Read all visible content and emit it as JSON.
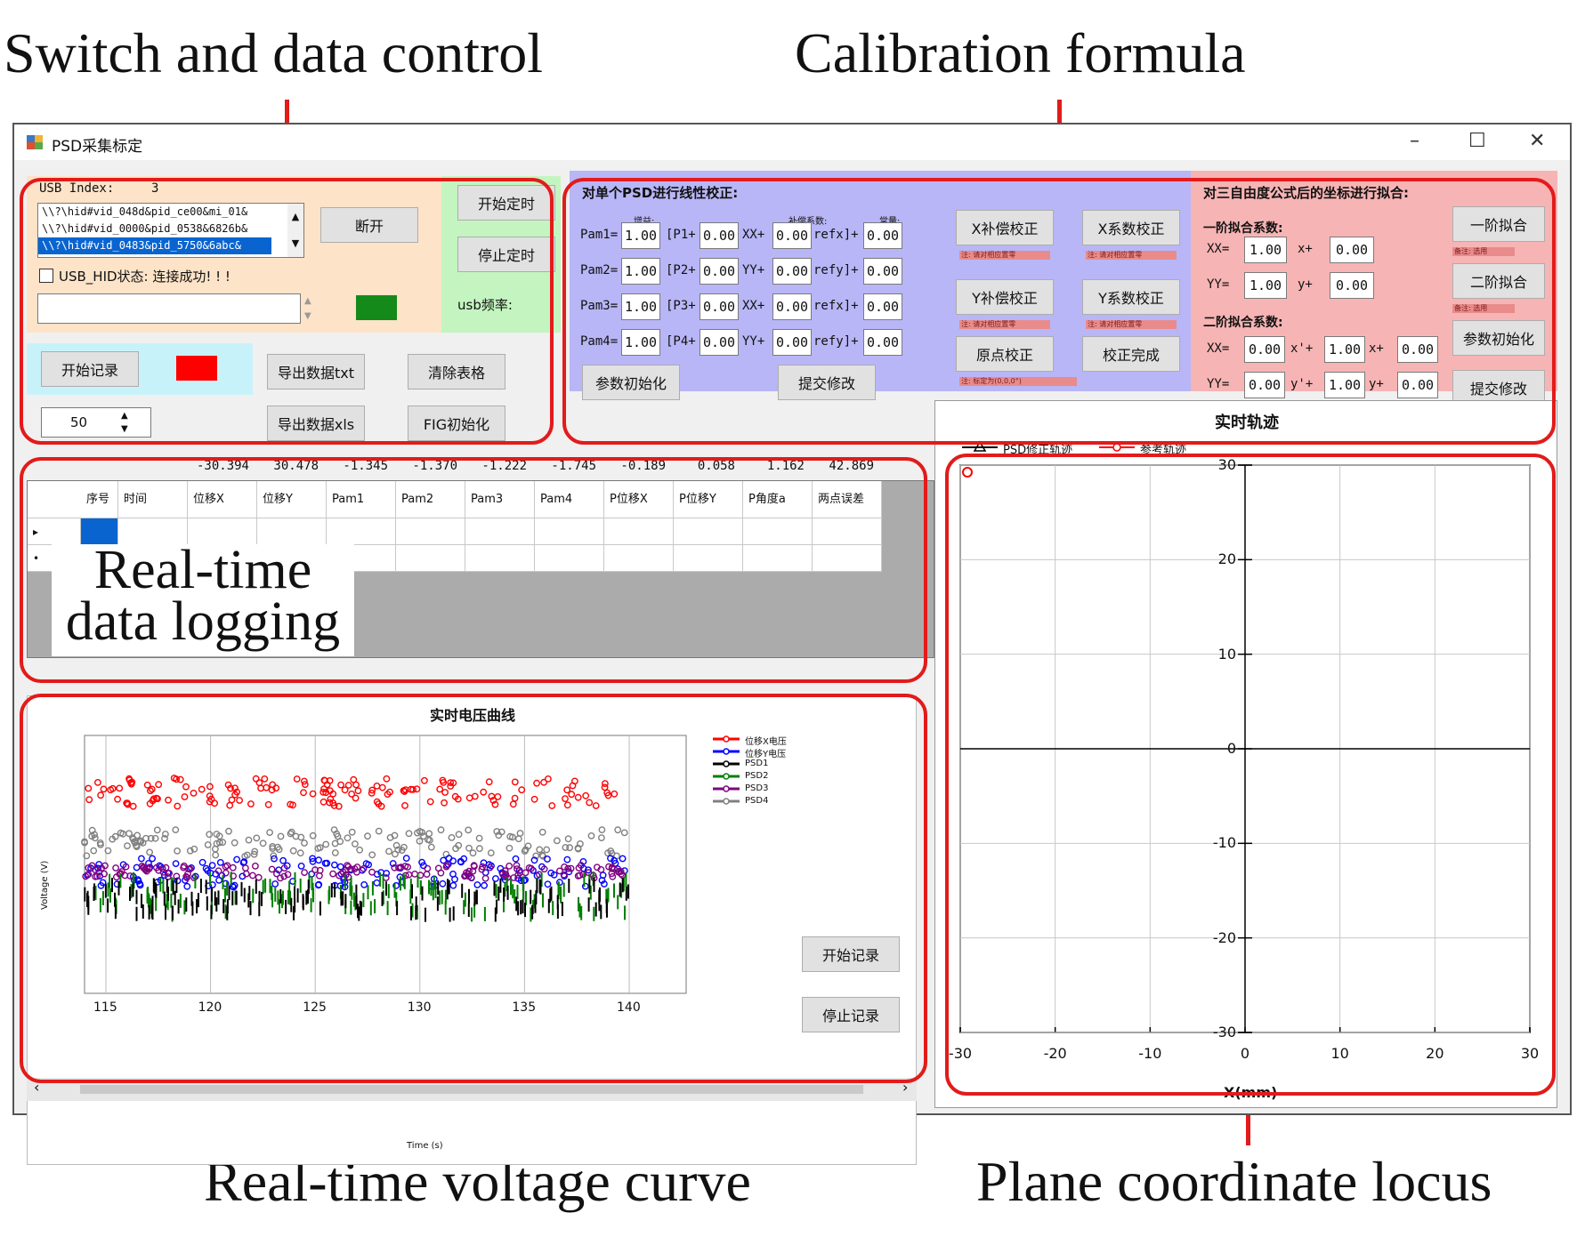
{
  "annotations": {
    "switch_and_data_control": "Switch and data control",
    "calibration_formula": "Calibration formula",
    "real_time_data_logging_line1": "Real-time",
    "real_time_data_logging_line2": "data logging",
    "real_time_voltage_curve": "Real-time voltage curve",
    "plane_coordinate_locus": "Plane coordinate locus"
  },
  "window": {
    "title": "PSD采集标定",
    "minimize_glyph": "–",
    "maximize_glyph": "☐",
    "close_glyph": "✕"
  },
  "control": {
    "usb_index_label": "USB Index:",
    "usb_index_value": "3",
    "device_list": [
      "\\\\?\\hid#vid_048d&pid_ce00&mi_01&",
      "\\\\?\\hid#vid_0000&pid_0538&6826b&",
      "\\\\?\\hid#vid_0483&pid_5750&6abc&"
    ],
    "disconnect_button": "断开",
    "usb_status_text": "USB_HID状态: 连接成功! ! !",
    "start_timer_button": "开始定时",
    "stop_timer_button": "停止定时",
    "usb_freq_label": "usb频率:",
    "start_record_button": "开始记录",
    "record_count_value": "50",
    "export_txt_button": "导出数据txt",
    "export_xls_button": "导出数据xls",
    "clear_table_button": "清除表格",
    "fig_init_button": "FIG初始化",
    "connected_color": "#138a1a",
    "record_indicator_color": "#ff0000"
  },
  "calibration": {
    "title": "对单个PSD进行线性校正:",
    "col_gain": "增益:",
    "col_comp": "补偿系数:",
    "col_const": "常量:",
    "rows": [
      {
        "label": "Pam1=",
        "gain": "1.00",
        "p": "[P1+",
        "pval": "0.00",
        "axis": "XX+",
        "comp": "0.00",
        "ref": "refx]+",
        "const": "0.00"
      },
      {
        "label": "Pam2=",
        "gain": "1.00",
        "p": "[P2+",
        "pval": "0.00",
        "axis": "YY+",
        "comp": "0.00",
        "ref": "refy]+",
        "const": "0.00"
      },
      {
        "label": "Pam3=",
        "gain": "1.00",
        "p": "[P3+",
        "pval": "0.00",
        "axis": "XX+",
        "comp": "0.00",
        "ref": "refx]+",
        "const": "0.00"
      },
      {
        "label": "Pam4=",
        "gain": "1.00",
        "p": "[P4+",
        "pval": "0.00",
        "axis": "YY+",
        "comp": "0.00",
        "ref": "refy]+",
        "const": "0.00"
      }
    ],
    "x_comp_button": "X补偿校正",
    "x_coef_button": "X系数校正",
    "y_comp_button": "Y补偿校正",
    "y_coef_button": "Y系数校正",
    "origin_button": "原点校正",
    "done_button": "校正完成",
    "param_init_button": "参数初始化",
    "submit_button": "提交修改",
    "hint_chip": "注: 请对相应置零",
    "origin_chip": "注: 标定为(0,0,0°)"
  },
  "fit": {
    "title": "对三自由度公式后的坐标进行拟合:",
    "first_order_label": "一阶拟合系数:",
    "second_order_label": "二阶拟合系数:",
    "first_rows": [
      {
        "label": "XX=",
        "a": "1.00",
        "op": "x+",
        "b": "0.00"
      },
      {
        "label": "YY=",
        "a": "1.00",
        "op": "y+",
        "b": "0.00"
      }
    ],
    "second_rows": [
      {
        "label": "XX=",
        "a": "0.00",
        "op1": "x'+",
        "b": "1.00",
        "op2": "x+",
        "c": "0.00"
      },
      {
        "label": "YY=",
        "a": "0.00",
        "op1": "y'+",
        "b": "1.00",
        "op2": "y+",
        "c": "0.00"
      }
    ],
    "first_fit_button": "一阶拟合",
    "second_fit_button": "二阶拟合",
    "param_init_button": "参数初始化",
    "submit_button": "提交修改",
    "chip1": "备注: 选用",
    "chip2": "备注: 选用"
  },
  "table": {
    "summary_values": [
      "-30.394",
      "30.478",
      "-1.345",
      "-1.370",
      "-1.222",
      "-1.745",
      "-0.189",
      "0.058",
      "1.162",
      "42.869"
    ],
    "headers": [
      "序号",
      "时间",
      "位移X",
      "位移Y",
      "Pam1",
      "Pam2",
      "Pam3",
      "Pam4",
      "P位移X",
      "P位移Y",
      "P角度a",
      "两点误差"
    ],
    "row_marker_current": "▸",
    "row_marker_new": "•"
  },
  "voltage_chart": {
    "title": "实时电压曲线",
    "ylabel": "Voltage (V)",
    "xlabel": "Time (s)",
    "x_ticks": [
      "115",
      "120",
      "125",
      "130",
      "135",
      "140"
    ],
    "legend": [
      {
        "name": "位移X电压",
        "color": "#ff0000"
      },
      {
        "name": "位移Y电压",
        "color": "#0000ff"
      },
      {
        "name": "PSD1",
        "color": "#000000"
      },
      {
        "name": "PSD2",
        "color": "#008000"
      },
      {
        "name": "PSD3",
        "color": "#800080"
      },
      {
        "name": "PSD4",
        "color": "#808080"
      }
    ],
    "start_record_button": "开始记录",
    "stop_record_button": "停止记录"
  },
  "chart_data": {
    "type": "scatter",
    "title": "实时轨迹",
    "xlabel": "X(mm)",
    "ylabel": "",
    "xlim": [
      -30,
      30
    ],
    "ylim": [
      -30,
      30
    ],
    "x_ticks": [
      "-30",
      "-20",
      "-10",
      "0",
      "10",
      "20",
      "30"
    ],
    "y_ticks": [
      "30",
      "20",
      "10",
      "0",
      "-10",
      "-20",
      "-30"
    ],
    "grid": true,
    "series": [
      {
        "name": "PSD修正轨迹",
        "color": "#000000",
        "points": []
      },
      {
        "name": "参考轨迹",
        "color": "#ff0000",
        "points": [
          {
            "x": -30,
            "y": 30
          }
        ]
      }
    ]
  }
}
